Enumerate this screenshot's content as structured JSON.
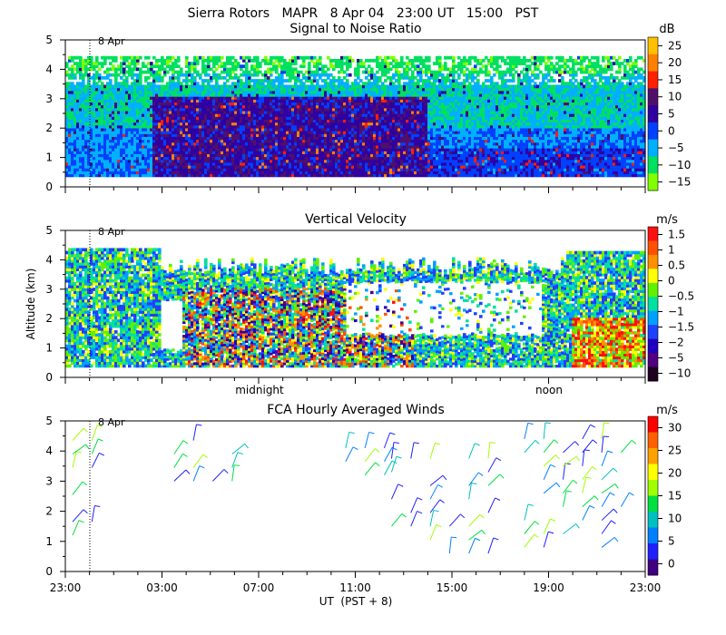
{
  "header": {
    "title": "Sierra Rotors   MAPR   8 Apr 04   23:00 UT   15:00   PST"
  },
  "chart_data": [
    {
      "id": "snr",
      "type": "heatmap",
      "title": "Signal to Noise Ratio",
      "ylabel": "",
      "ylim": [
        0,
        5
      ],
      "yticks": [
        "0",
        "1",
        "2",
        "3",
        "4",
        "5"
      ],
      "date_marker": "8 Apr",
      "colorbar": {
        "unit": "dB",
        "labels": [
          "25",
          "20",
          "15",
          "10",
          "5",
          "0",
          "−5",
          "−10",
          "−15"
        ],
        "colors": [
          "#ffc000",
          "#ff8000",
          "#ff2000",
          "#50106a",
          "#3000a0",
          "#0040ff",
          "#00b0ff",
          "#00e060",
          "#80ff00"
        ]
      }
    },
    {
      "id": "vv",
      "type": "heatmap",
      "title": "Vertical Velocity",
      "ylabel": "Altitude (km)",
      "ylim": [
        0,
        5
      ],
      "yticks": [
        "0",
        "1",
        "2",
        "3",
        "4",
        "5"
      ],
      "date_marker": "8 Apr",
      "x_annotations": [
        "midnight",
        "noon"
      ],
      "colorbar": {
        "unit": "m/s",
        "labels": [
          "1.5",
          "1",
          "0.5",
          "0",
          "−0.5",
          "−1",
          "−1.5",
          "−2",
          "−5",
          "−10"
        ],
        "colors": [
          "#ff1010",
          "#ff5000",
          "#ff9000",
          "#ffff00",
          "#60f000",
          "#00e0a0",
          "#00a0ff",
          "#2040ff",
          "#2000c0",
          "#500080",
          "#200020"
        ]
      }
    },
    {
      "id": "winds",
      "type": "scatter",
      "title": "FCA Hourly Averaged Winds",
      "ylabel": "",
      "ylim": [
        0,
        5
      ],
      "yticks": [
        "0",
        "1",
        "2",
        "3",
        "4",
        "5"
      ],
      "date_marker": "8 Apr",
      "xticks": [
        "23:00",
        "03:00",
        "07:00",
        "11:00",
        "15:00",
        "19:00",
        "23:00"
      ],
      "xlabel": "UT  (PST + 8)",
      "colorbar": {
        "unit": "m/s",
        "labels": [
          "30",
          "25",
          "20",
          "15",
          "10",
          "5",
          "0"
        ],
        "colors": [
          "#ff0000",
          "#ff6000",
          "#ffa000",
          "#ffff00",
          "#a0ff00",
          "#00e040",
          "#00c0c0",
          "#0080ff",
          "#2020ff",
          "#400080"
        ]
      }
    }
  ]
}
